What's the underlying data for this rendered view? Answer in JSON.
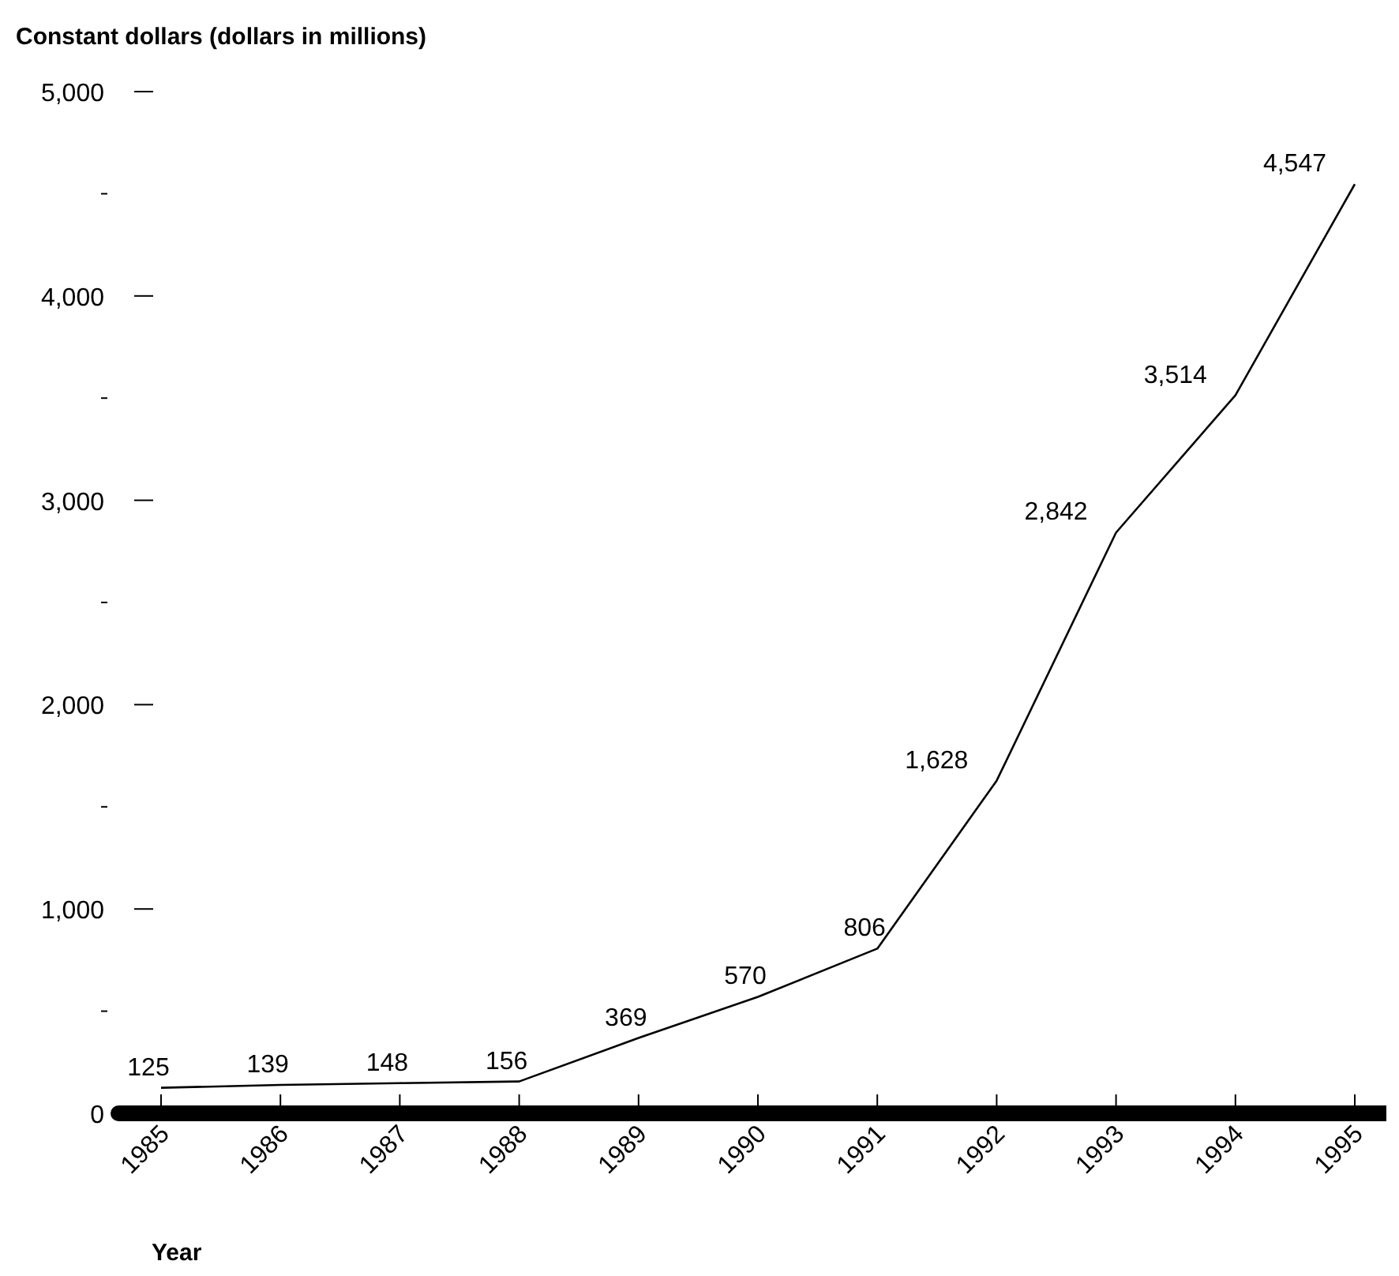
{
  "chart_data": {
    "type": "line",
    "ylabel": "Constant dollars (dollars in millions)",
    "xlabel": "Year",
    "categories": [
      "1985",
      "1986",
      "1987",
      "1988",
      "1989",
      "1990",
      "1991",
      "1992",
      "1993",
      "1994",
      "1995"
    ],
    "series": [
      {
        "color": "#000000",
        "values": [
          125,
          139,
          148,
          156,
          369,
          570,
          806,
          1628,
          2842,
          3514,
          4547
        ],
        "value_labels": [
          "125",
          "139",
          "148",
          "156",
          "369",
          "570",
          "806",
          "1,628",
          "2,842",
          "3,514",
          "4,547"
        ]
      }
    ],
    "ylim": [
      0,
      5000
    ],
    "yticks": [
      0,
      {
        "value": 500,
        "label": null
      },
      {
        "value": 1000,
        "label": "1,000"
      },
      {
        "value": 1500,
        "label": null
      },
      {
        "value": 2000,
        "label": "2,000"
      },
      {
        "value": 2500,
        "label": null
      },
      {
        "value": 3000,
        "label": "3,000"
      },
      {
        "value": 3500,
        "label": null
      },
      {
        "value": 4000,
        "label": "4,000"
      },
      {
        "value": 4500,
        "label": null
      },
      {
        "value": 5000,
        "label": "5,000"
      }
    ],
    "grid": false,
    "marker": "none",
    "line_style": "solid"
  }
}
